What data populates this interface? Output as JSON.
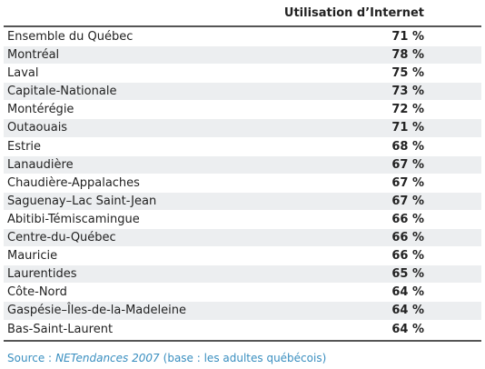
{
  "table": {
    "header": "Utilisation d’Internet",
    "rows": [
      [
        "Ensemble du Québec",
        "71 %"
      ],
      [
        "Montréal",
        "78 %"
      ],
      [
        "Laval",
        "75 %"
      ],
      [
        "Capitale-Nationale",
        "73 %"
      ],
      [
        "Montérégie",
        "72 %"
      ],
      [
        "Outaouais",
        "71 %"
      ],
      [
        "Estrie",
        "68 %"
      ],
      [
        "Lanaudière",
        "67 %"
      ],
      [
        "Chaudière-Appalaches",
        "67 %"
      ],
      [
        "Saguenay–Lac Saint-Jean",
        "67 %"
      ],
      [
        "Abitibi-Témiscamingue",
        "66 %"
      ],
      [
        "Centre-du-Québec",
        "66 %"
      ],
      [
        "Mauricie",
        "66 %"
      ],
      [
        "Laurentides",
        "65 %"
      ],
      [
        "Côte-Nord",
        "64 %"
      ],
      [
        "Gaspésie–Îles-de-la-Madeleine",
        "64 %"
      ],
      [
        "Bas-Saint-Laurent",
        "64 %"
      ]
    ]
  },
  "source": {
    "prefix": "Source :",
    "title": "NETendances 2007",
    "note": "(base : les adultes québécois)"
  }
}
